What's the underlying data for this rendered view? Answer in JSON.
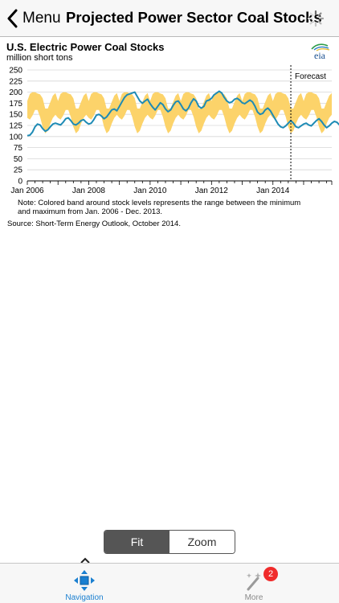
{
  "navbar": {
    "back_label": "Menu",
    "title": "Projected Power Sector Coal Stocks"
  },
  "logo": {
    "text": "eia"
  },
  "chart_data": {
    "type": "line",
    "title": "U.S. Electric Power Coal Stocks",
    "ylabel": "million short tons",
    "ylim": [
      0,
      250
    ],
    "yticks": [
      0,
      25,
      50,
      75,
      100,
      125,
      150,
      175,
      200,
      225,
      250
    ],
    "x_start": "Jan 2006",
    "x_end": "Dec 2015",
    "xtick_labels": [
      "Jan 2006",
      "Jan 2008",
      "Jan 2010",
      "Jan 2012",
      "Jan 2014"
    ],
    "grid": true,
    "forecast_start": "Aug 2014",
    "forecast_label": "Forecast",
    "band": {
      "description": "min-max range Jan 2006 - Dec 2013, repeated by month",
      "colors": "#fcd36a",
      "upper_by_month": [
        180,
        196,
        200,
        200,
        197,
        195,
        186,
        163,
        163,
        178,
        192,
        198
      ],
      "lower_by_month": [
        142,
        138,
        147,
        160,
        160,
        144,
        122,
        107,
        113,
        129,
        142,
        149
      ]
    },
    "series": [
      {
        "color": "#1e8bb5",
        "start": "Jan 2006",
        "values": [
          102,
          103,
          110,
          122,
          128,
          126,
          118,
          112,
          115,
          122,
          128,
          130,
          128,
          126,
          132,
          140,
          142,
          136,
          128,
          126,
          130,
          136,
          138,
          132,
          128,
          130,
          138,
          148,
          150,
          146,
          140,
          144,
          152,
          160,
          162,
          158,
          168,
          178,
          188,
          194,
          196,
          198,
          200,
          190,
          180,
          175,
          180,
          184,
          174,
          166,
          160,
          168,
          176,
          172,
          162,
          156,
          160,
          170,
          178,
          180,
          172,
          162,
          158,
          164,
          176,
          185,
          180,
          168,
          164,
          168,
          180,
          182,
          186,
          194,
          198,
          202,
          198,
          188,
          180,
          176,
          178,
          184,
          186,
          182,
          176,
          174,
          178,
          182,
          178,
          168,
          155,
          150,
          152,
          160,
          164,
          158,
          148,
          138,
          128,
          122,
          120,
          124,
          130,
          136,
          130,
          122,
          120,
          124,
          128,
          130,
          126,
          124,
          130,
          136,
          140,
          134,
          126,
          120,
          124,
          130,
          134,
          132,
          126,
          124,
          128,
          136,
          142,
          144,
          140,
          132,
          126,
          130,
          136,
          140,
          136,
          132
        ]
      }
    ],
    "note_line1": "Note:  Colored band around stock levels represents the range between the minimum",
    "note_line2": "and maximum  from Jan. 2006 - Dec. 2013.",
    "source": "Source: Short-Term Energy Outlook, October 2014."
  },
  "segmented": {
    "fit": "Fit",
    "zoom": "Zoom"
  },
  "tabbar": {
    "navigation_label": "Navigation",
    "more_label": "More",
    "more_badge": "2",
    "active_color": "#1a7fd0"
  }
}
